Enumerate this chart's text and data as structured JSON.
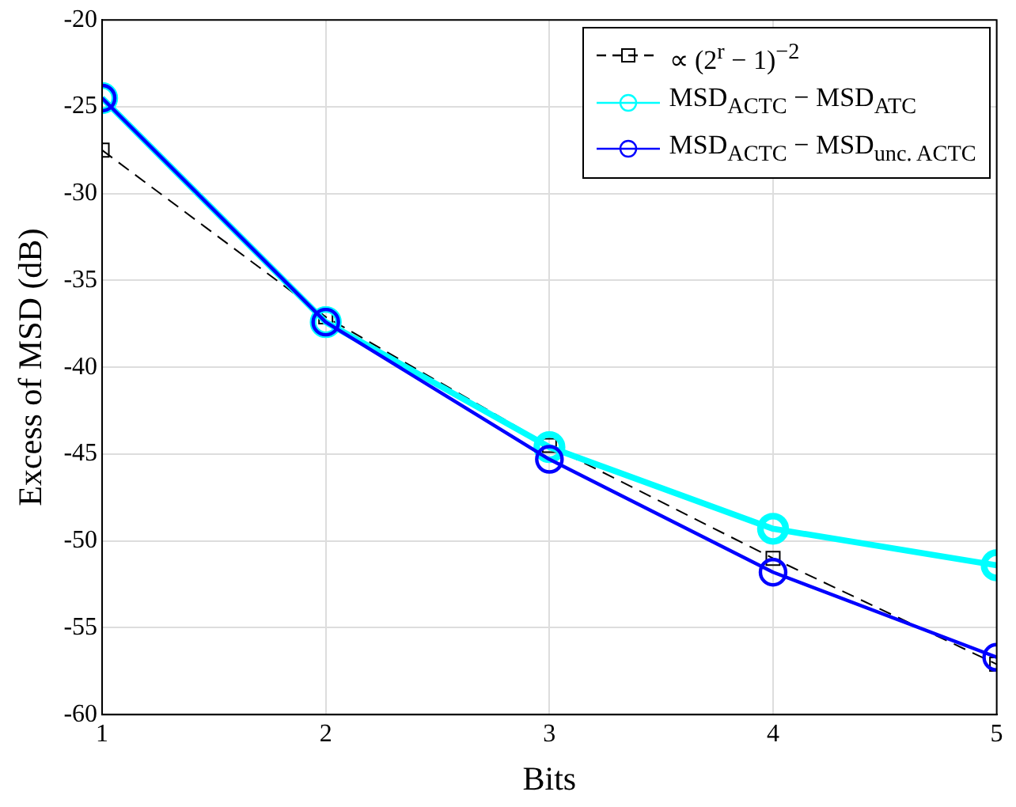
{
  "chart_data": {
    "type": "line",
    "xlabel": "Bits",
    "ylabel": "Excess of MSD (dB)",
    "x": [
      1,
      2,
      3,
      4,
      5
    ],
    "xlim": [
      1,
      5
    ],
    "xticks": [
      1,
      2,
      3,
      4,
      5
    ],
    "ylim": [
      -60,
      -20
    ],
    "yticks": [
      -60,
      -55,
      -50,
      -45,
      -40,
      -35,
      -30,
      -25,
      -20
    ],
    "grid": true,
    "legend": "top right",
    "series": [
      {
        "name": "∝ (2$^{r}$ − 1)$^{−2}$",
        "color": "#000000",
        "marker": "square",
        "line_style": "dashed",
        "values": [
          -27.5,
          -37.1,
          -44.5,
          -51,
          -57.1
        ]
      },
      {
        "name": "MSD$_{ACTC}$ − MSD$_{ATC}$",
        "color": "#00ffff",
        "marker": "circle",
        "line_style": "solid",
        "values": [
          -24.5,
          -37.4,
          -44.6,
          -49.3,
          -51.4
        ]
      },
      {
        "name": "MSD$_{ACTC}$ − MSD$_{unc. ACTC}$",
        "color": "#0000ff",
        "marker": "circle",
        "line_style": "solid",
        "values": [
          -24.5,
          -37.4,
          -45.3,
          -51.8,
          -56.7
        ]
      }
    ]
  }
}
